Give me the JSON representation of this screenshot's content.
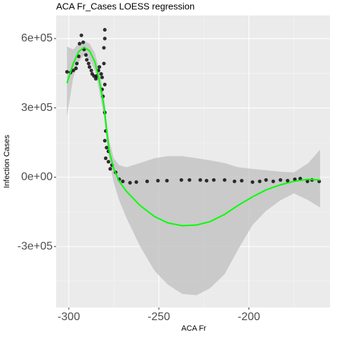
{
  "chart_data": {
    "type": "scatter",
    "title": "ACA Fr_Cases LOESS regression",
    "x_label": "ACA Fr",
    "y_label": "Infection Cases",
    "xlim": [
      -307,
      -155
    ],
    "ylim": [
      -564000,
      700000
    ],
    "xticks": [
      -300,
      -250,
      -200
    ],
    "yticks": [
      {
        "value": -300000,
        "label": "-3e+05"
      },
      {
        "value": 0,
        "label": "0e+00"
      },
      {
        "value": 300000,
        "label": "3e+05"
      },
      {
        "value": 600000,
        "label": "6e+05"
      }
    ],
    "xminor": [
      -275,
      -225,
      -175
    ],
    "yminor": [
      -450000,
      -150000,
      150000,
      450000
    ],
    "grid": true,
    "points": {
      "color": "#000000",
      "x": [
        -301,
        -299,
        -297.5,
        -296,
        -295.5,
        -294.5,
        -294,
        -293,
        -292,
        -291.5,
        -290.5,
        -290,
        -289,
        -288.5,
        -287.5,
        -287,
        -286,
        -285,
        -284.5,
        -283.5,
        -283,
        -282,
        -281.5,
        -280.5,
        -280,
        -280,
        -280,
        -280,
        -279.5,
        -279,
        -278,
        -278,
        -277,
        -276,
        -274,
        -272,
        -270,
        -266,
        -262.5,
        -256.5,
        -250.5,
        -245.5,
        -237.5,
        -233,
        -227,
        -223.5,
        -219.5,
        -213.5,
        -208,
        -204,
        -198,
        -194,
        -190.5,
        -186.5,
        -182.5,
        -178.5,
        -174.5,
        -171.5,
        -167.5,
        -165,
        -161,
        -281,
        -280.5,
        -280,
        -279.5,
        -281.5
      ],
      "values": [
        456000,
        453000,
        462000,
        471000,
        492000,
        523000,
        578000,
        614000,
        584000,
        553000,
        529000,
        508000,
        492000,
        477000,
        462000,
        447000,
        438000,
        426000,
        438000,
        462000,
        477000,
        447000,
        432000,
        492000,
        638000,
        401000,
        280000,
        158000,
        82000,
        128000,
        112000,
        67000,
        36000,
        52000,
        21000,
        -9000,
        -18000,
        -24000,
        -21000,
        -18000,
        -15000,
        -15000,
        -12000,
        -12000,
        -12000,
        -15000,
        -12000,
        -12000,
        -18000,
        -15000,
        -21000,
        -18000,
        -12000,
        -18000,
        -12000,
        -15000,
        -9000,
        -6000,
        -18000,
        -12000,
        -18000,
        350000,
        560000,
        600000,
        200000,
        380000
      ]
    },
    "fit": {
      "color": "#00ff00",
      "band_color": "#bfbfbf",
      "x": [
        -301,
        -297.5,
        -294.5,
        -291.5,
        -288.5,
        -285.5,
        -283,
        -280.5,
        -279,
        -277.5,
        -275,
        -272,
        -268,
        -260.5,
        -252.5,
        -245,
        -237,
        -229,
        -221.5,
        -213.5,
        -206,
        -198,
        -190.5,
        -182.5,
        -175,
        -167,
        -160.5
      ],
      "values": [
        407000,
        492000,
        544000,
        562000,
        547000,
        499000,
        416000,
        310000,
        204000,
        112000,
        36000,
        -18000,
        -61000,
        -122000,
        -170000,
        -198000,
        -210000,
        -207000,
        -192000,
        -161000,
        -122000,
        -85000,
        -55000,
        -33000,
        -18000,
        -9000,
        -12000
      ],
      "upper": [
        565000,
        553000,
        578000,
        590000,
        578000,
        538000,
        462000,
        356000,
        249000,
        158000,
        82000,
        52000,
        43000,
        61000,
        82000,
        91000,
        91000,
        82000,
        73000,
        61000,
        43000,
        36000,
        30000,
        24000,
        21000,
        61000,
        119000
      ],
      "lower": [
        264000,
        432000,
        499000,
        529000,
        508000,
        462000,
        371000,
        264000,
        158000,
        67000,
        -24000,
        -100000,
        -176000,
        -298000,
        -404000,
        -465000,
        -505000,
        -511000,
        -480000,
        -420000,
        -313000,
        -207000,
        -146000,
        -100000,
        -70000,
        -100000,
        -131000
      ]
    }
  }
}
